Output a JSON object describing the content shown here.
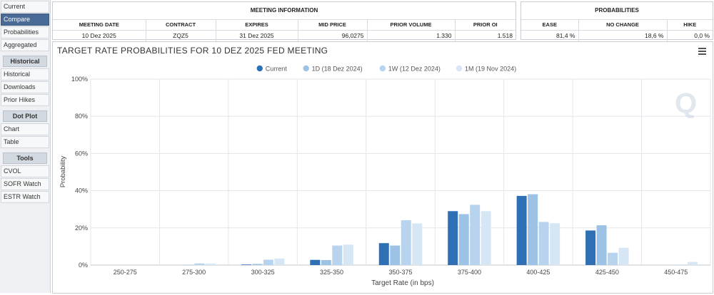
{
  "sidebar": {
    "top_items": [
      {
        "label": "Current",
        "active": false
      },
      {
        "label": "Compare",
        "active": true
      },
      {
        "label": "Probabilities",
        "active": false
      },
      {
        "label": "Aggregated",
        "active": false
      }
    ],
    "sections": [
      {
        "title": "Historical",
        "items": [
          "Historical",
          "Downloads",
          "Prior Hikes"
        ]
      },
      {
        "title": "Dot Plot",
        "items": [
          "Chart",
          "Table"
        ]
      },
      {
        "title": "Tools",
        "items": [
          "CVOL",
          "SOFR Watch",
          "ESTR Watch"
        ]
      }
    ]
  },
  "meeting_info": {
    "title": "MEETING INFORMATION",
    "headers": {
      "meeting_date": "MEETING DATE",
      "contract": "CONTRACT",
      "expires": "EXPIRES",
      "mid_price": "MID PRICE",
      "prior_volume": "PRIOR VOLUME",
      "prior_oi": "PRIOR OI"
    },
    "values": {
      "meeting_date": "10 Dez 2025",
      "contract": "ZQZ5",
      "expires": "31 Dez 2025",
      "mid_price": "96,0275",
      "prior_volume": "1.330",
      "prior_oi": "1.518"
    }
  },
  "probabilities": {
    "title": "PROBABILITIES",
    "headers": {
      "ease": "EASE",
      "no_change": "NO CHANGE",
      "hike": "HIKE"
    },
    "values": {
      "ease": "81,4 %",
      "no_change": "18,6 %",
      "hike": "0,0 %"
    }
  },
  "chart_menu_icon": "hamburger-menu-icon",
  "watermark_icon": "quikstrike-q-logo",
  "chart_data": {
    "type": "bar",
    "title": "TARGET RATE PROBABILITIES FOR 10 DEZ 2025 FED MEETING",
    "xlabel": "Target Rate (in bps)",
    "ylabel": "Probability",
    "categories": [
      "250-275",
      "275-300",
      "300-325",
      "325-350",
      "350-375",
      "375-400",
      "400-425",
      "425-450",
      "450-475"
    ],
    "y_ticks": [
      "0%",
      "20%",
      "40%",
      "60%",
      "80%",
      "100%"
    ],
    "ylim": [
      0,
      100
    ],
    "grid": true,
    "legend_position": "top",
    "series": [
      {
        "name": "Current",
        "color": "#2f70b5",
        "values": [
          0,
          0,
          0.3,
          2.8,
          11.8,
          29.0,
          37.2,
          18.6,
          0
        ]
      },
      {
        "name": "1D (18 Dez 2024)",
        "color": "#9cc2e6",
        "values": [
          0,
          0.1,
          0.6,
          2.7,
          10.5,
          27.4,
          38.1,
          21.4,
          0
        ]
      },
      {
        "name": "1W (12 Dez 2024)",
        "color": "#b7d3ee",
        "values": [
          0,
          0.9,
          2.9,
          10.5,
          24.1,
          32.4,
          23.2,
          6.6,
          0.2
        ]
      },
      {
        "name": "1M (19 Nov 2024)",
        "color": "#d6e6f5",
        "values": [
          0,
          0.8,
          3.5,
          11.0,
          22.4,
          29.0,
          22.5,
          9.3,
          1.7
        ]
      }
    ]
  }
}
